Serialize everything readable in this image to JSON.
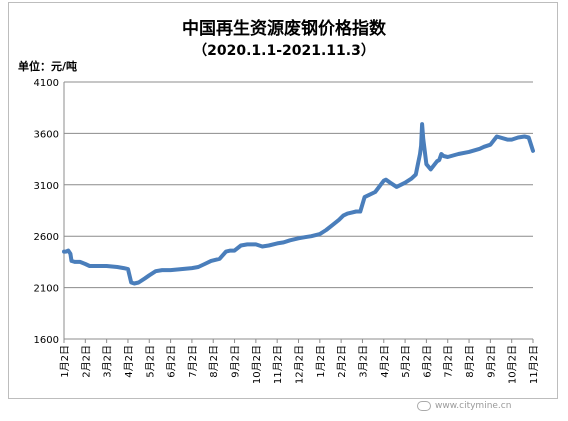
{
  "chart_data": {
    "type": "line",
    "title": "中国再生资源废钢价格指数",
    "subtitle": "（2020.1.1-2021.11.3）",
    "unit_label": "单位：元/吨",
    "yticks": [
      1600,
      2100,
      2600,
      3100,
      3600,
      4100
    ],
    "ylim": [
      1600,
      4100
    ],
    "xticks": [
      "1月2日",
      "2月2日",
      "3月2日",
      "4月2日",
      "5月2日",
      "6月2日",
      "7月2日",
      "8月2日",
      "9月2日",
      "10月2日",
      "11月2日",
      "12月2日",
      "1月2日",
      "2月2日",
      "3月2日",
      "4月2日",
      "5月2日",
      "6月2日",
      "7月2日",
      "8月2日",
      "9月2日",
      "10月2日",
      "11月2日"
    ],
    "grid": true,
    "legend": "none",
    "line_color": "#4a7ebb",
    "series": [
      {
        "x": [
          0,
          0.1,
          0.2,
          0.3,
          0.35,
          0.5,
          0.75,
          1,
          1.2,
          1.5,
          2,
          2.5,
          2.8,
          3,
          3.15,
          3.3,
          3.5,
          3.8,
          4,
          4.3,
          4.6,
          5,
          5.5,
          6,
          6.3,
          6.6,
          6.9,
          7.3,
          7.6,
          7.8,
          8,
          8.3,
          8.6,
          9,
          9.3,
          9.6,
          10,
          10.3,
          10.6,
          11,
          11.3,
          11.6,
          12,
          12.3,
          12.6,
          12.9,
          13.1,
          13.3,
          13.5,
          13.7,
          13.9,
          14.1,
          14.3,
          14.6,
          15,
          15.1,
          15.3,
          15.6,
          16,
          16.3,
          16.5,
          16.6,
          16.7,
          16.75,
          16.8,
          16.85,
          17,
          17.2,
          17.5,
          17.6,
          17.7,
          17.8,
          18,
          18.5,
          19,
          19.5,
          19.7,
          20,
          20.3,
          20.8,
          21,
          21.3,
          21.6,
          21.8,
          22
        ],
        "values": [
          2450,
          2450,
          2460,
          2430,
          2360,
          2350,
          2350,
          2330,
          2310,
          2310,
          2310,
          2300,
          2290,
          2280,
          2150,
          2140,
          2150,
          2190,
          2220,
          2260,
          2270,
          2270,
          2280,
          2290,
          2300,
          2330,
          2360,
          2380,
          2450,
          2460,
          2460,
          2510,
          2520,
          2520,
          2500,
          2510,
          2530,
          2540,
          2560,
          2580,
          2590,
          2600,
          2620,
          2660,
          2710,
          2760,
          2800,
          2820,
          2830,
          2840,
          2840,
          2980,
          3000,
          3030,
          3140,
          3150,
          3120,
          3080,
          3120,
          3160,
          3200,
          3300,
          3400,
          3480,
          3690,
          3550,
          3300,
          3250,
          3330,
          3340,
          3400,
          3380,
          3370,
          3400,
          3420,
          3450,
          3470,
          3490,
          3570,
          3540,
          3540,
          3560,
          3570,
          3560,
          3430
        ]
      }
    ]
  },
  "watermark": {
    "url": "www.citymine.cn"
  }
}
